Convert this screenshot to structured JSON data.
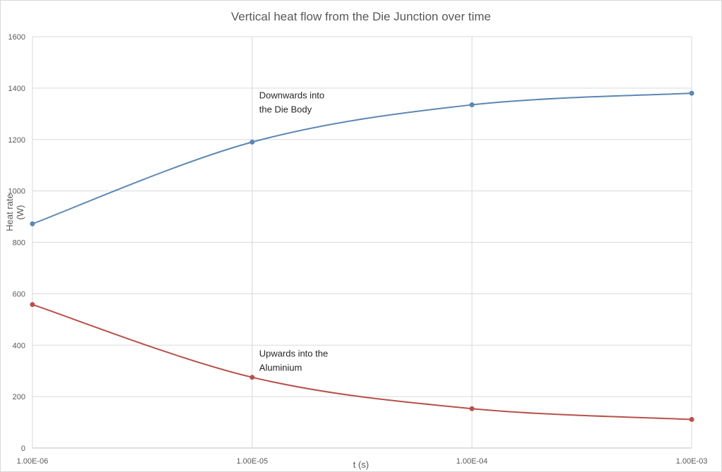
{
  "chart_data": {
    "type": "line",
    "title": "Vertical heat flow from the Die Junction over time",
    "xlabel": "t (s)",
    "ylabel": "Heat rate\n(W)",
    "x_scale": "log",
    "x": [
      1e-06,
      1e-05,
      0.0001,
      0.001
    ],
    "x_tick_labels": [
      "1.00E-06",
      "1.00E-05",
      "1.00E-04",
      "1.00E-03"
    ],
    "ylim": [
      0,
      1600
    ],
    "y_ticks": [
      0,
      200,
      400,
      600,
      800,
      1000,
      1200,
      1400,
      1600
    ],
    "grid": true,
    "legend": "none",
    "series": [
      {
        "values": [
          872,
          1190,
          1335,
          1380
        ],
        "color": "#5b87b4"
      },
      {
        "values": [
          558,
          275,
          153,
          111
        ],
        "color": "#b8504b"
      }
    ],
    "annotations": [
      {
        "lines": [
          "Downwards into",
          "the Die Body"
        ],
        "x": 1e-05,
        "y": 1360
      },
      {
        "lines": [
          "Upwards into the",
          "Aluminium"
        ],
        "x": 1e-05,
        "y": 355
      }
    ]
  }
}
